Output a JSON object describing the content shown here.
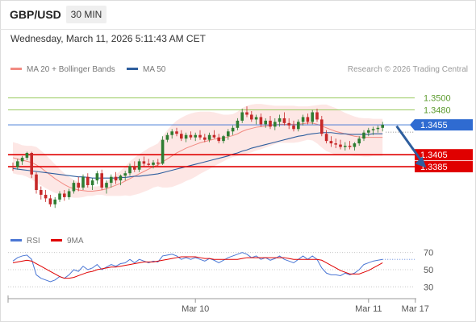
{
  "header": {
    "symbol": "GBP/USD",
    "timeframe": "30 MIN",
    "timestamp": "Wednesday, March 11, 2026 5:11:43 AM CET",
    "credit": "Research © 2026 Trading Central"
  },
  "colors": {
    "bollinger": "#f28b82",
    "ma50": "#2e5e9e",
    "candle_up": "#2e7d32",
    "candle_down": "#c62828",
    "support": "#e00000",
    "resistance": "#8bc34a",
    "current": "#2f6bd1",
    "rsi": "#4a76d4",
    "rsi_ma": "#e00000"
  },
  "chart_data": [
    {
      "type": "candlestick",
      "legend": [
        "MA 20 + Bollinger Bands",
        "MA 50"
      ],
      "ylim": [
        1.328,
        1.354
      ],
      "xlabels": [
        {
          "label": "Mar 10",
          "index": 39
        },
        {
          "label": "Mar 11",
          "index": 76
        },
        {
          "label": "Mar 17",
          "index": 86
        }
      ],
      "levels": {
        "resistance": [
          1.35,
          1.348
        ],
        "current": 1.3455,
        "support": [
          1.3405,
          1.3385
        ]
      },
      "forecast_arrow": {
        "from": [
          82,
          1.3453
        ],
        "to": [
          88,
          1.3386
        ]
      },
      "candles": [
        [
          1.3386,
          1.3392,
          1.3378,
          1.3384
        ],
        [
          1.3384,
          1.3398,
          1.338,
          1.3394
        ],
        [
          1.3394,
          1.3403,
          1.3388,
          1.34
        ],
        [
          1.34,
          1.341,
          1.3396,
          1.3408
        ],
        [
          1.3408,
          1.341,
          1.3366,
          1.3372
        ],
        [
          1.3372,
          1.3376,
          1.334,
          1.3346
        ],
        [
          1.3346,
          1.3352,
          1.333,
          1.3338
        ],
        [
          1.3338,
          1.3346,
          1.3326,
          1.3332
        ],
        [
          1.3332,
          1.3338,
          1.3318,
          1.3322
        ],
        [
          1.3322,
          1.3334,
          1.3316,
          1.333
        ],
        [
          1.333,
          1.3344,
          1.3326,
          1.334
        ],
        [
          1.334,
          1.3346,
          1.3328,
          1.3334
        ],
        [
          1.3334,
          1.3348,
          1.333,
          1.3344
        ],
        [
          1.3344,
          1.3362,
          1.334,
          1.3358
        ],
        [
          1.3358,
          1.3368,
          1.3344,
          1.335
        ],
        [
          1.335,
          1.3372,
          1.3346,
          1.3368
        ],
        [
          1.3368,
          1.3374,
          1.335,
          1.3354
        ],
        [
          1.3354,
          1.3366,
          1.3346,
          1.3362
        ],
        [
          1.3362,
          1.3378,
          1.3356,
          1.3374
        ],
        [
          1.3374,
          1.338,
          1.3346,
          1.335
        ],
        [
          1.335,
          1.3362,
          1.334,
          1.3358
        ],
        [
          1.3358,
          1.3372,
          1.335,
          1.3368
        ],
        [
          1.3368,
          1.3376,
          1.3356,
          1.3362
        ],
        [
          1.3362,
          1.3372,
          1.3354,
          1.337
        ],
        [
          1.337,
          1.3378,
          1.3362,
          1.3374
        ],
        [
          1.3374,
          1.339,
          1.337,
          1.3386
        ],
        [
          1.3386,
          1.3394,
          1.3376,
          1.338
        ],
        [
          1.338,
          1.3398,
          1.3376,
          1.3394
        ],
        [
          1.3394,
          1.3402,
          1.3386,
          1.339
        ],
        [
          1.339,
          1.3398,
          1.3384,
          1.3388
        ],
        [
          1.3388,
          1.3396,
          1.3382,
          1.3392
        ],
        [
          1.3392,
          1.3398,
          1.3386,
          1.339
        ],
        [
          1.339,
          1.3436,
          1.3388,
          1.343
        ],
        [
          1.343,
          1.3442,
          1.3426,
          1.3438
        ],
        [
          1.3438,
          1.3448,
          1.3432,
          1.3444
        ],
        [
          1.3444,
          1.345,
          1.3436,
          1.344
        ],
        [
          1.344,
          1.3446,
          1.3428,
          1.3432
        ],
        [
          1.3432,
          1.3442,
          1.3426,
          1.3438
        ],
        [
          1.3438,
          1.3444,
          1.343,
          1.3434
        ],
        [
          1.3434,
          1.3442,
          1.3428,
          1.3438
        ],
        [
          1.3438,
          1.3446,
          1.343,
          1.3434
        ],
        [
          1.3434,
          1.344,
          1.3426,
          1.343
        ],
        [
          1.343,
          1.3442,
          1.3426,
          1.3438
        ],
        [
          1.3438,
          1.3446,
          1.3432,
          1.3434
        ],
        [
          1.3434,
          1.344,
          1.3424,
          1.3428
        ],
        [
          1.3428,
          1.3438,
          1.3424,
          1.3436
        ],
        [
          1.3436,
          1.3448,
          1.343,
          1.3444
        ],
        [
          1.3444,
          1.3454,
          1.3438,
          1.345
        ],
        [
          1.345,
          1.3466,
          1.3446,
          1.3462
        ],
        [
          1.3462,
          1.3482,
          1.3458,
          1.3476
        ],
        [
          1.3476,
          1.3486,
          1.3468,
          1.3472
        ],
        [
          1.3472,
          1.3478,
          1.346,
          1.3464
        ],
        [
          1.3464,
          1.3472,
          1.3456,
          1.3468
        ],
        [
          1.3468,
          1.3474,
          1.3452,
          1.3456
        ],
        [
          1.3456,
          1.3466,
          1.345,
          1.3462
        ],
        [
          1.3462,
          1.347,
          1.3448,
          1.3452
        ],
        [
          1.3452,
          1.3466,
          1.3446,
          1.346
        ],
        [
          1.346,
          1.3472,
          1.3452,
          1.3466
        ],
        [
          1.3466,
          1.3476,
          1.3454,
          1.3458
        ],
        [
          1.3458,
          1.3466,
          1.3448,
          1.3454
        ],
        [
          1.3454,
          1.3462,
          1.3444,
          1.3448
        ],
        [
          1.3448,
          1.3464,
          1.3444,
          1.346
        ],
        [
          1.346,
          1.3472,
          1.3454,
          1.3468
        ],
        [
          1.3468,
          1.3474,
          1.3456,
          1.346
        ],
        [
          1.346,
          1.348,
          1.3456,
          1.3476
        ],
        [
          1.3476,
          1.3482,
          1.346,
          1.3464
        ],
        [
          1.3464,
          1.347,
          1.3436,
          1.344
        ],
        [
          1.344,
          1.3446,
          1.3424,
          1.3428
        ],
        [
          1.3428,
          1.3436,
          1.3418,
          1.3424
        ],
        [
          1.3424,
          1.3432,
          1.3416,
          1.3422
        ],
        [
          1.3422,
          1.343,
          1.3414,
          1.3418
        ],
        [
          1.3418,
          1.3426,
          1.3412,
          1.342
        ],
        [
          1.342,
          1.3428,
          1.3414,
          1.3418
        ],
        [
          1.3418,
          1.3426,
          1.3412,
          1.3424
        ],
        [
          1.3424,
          1.3436,
          1.342,
          1.3432
        ],
        [
          1.3432,
          1.3446,
          1.3428,
          1.3442
        ],
        [
          1.3442,
          1.345,
          1.3436,
          1.3446
        ],
        [
          1.3446,
          1.3452,
          1.3438,
          1.3448
        ],
        [
          1.3448,
          1.3454,
          1.3442,
          1.345
        ],
        [
          1.345,
          1.346,
          1.3444,
          1.3455
        ]
      ],
      "bb_upper": [
        1.3426,
        1.3424,
        1.3421,
        1.342,
        1.342,
        1.3418,
        1.3412,
        1.3405,
        1.3397,
        1.3389,
        1.3381,
        1.3374,
        1.3368,
        1.3363,
        1.3359,
        1.3356,
        1.3352,
        1.3352,
        1.3352,
        1.3354,
        1.336,
        1.3366,
        1.3372,
        1.3378,
        1.3385,
        1.3394,
        1.34,
        1.3406,
        1.3411,
        1.3416,
        1.342,
        1.3424,
        1.3436,
        1.3446,
        1.3455,
        1.3462,
        1.3467,
        1.3471,
        1.3474,
        1.3476,
        1.3477,
        1.3477,
        1.3477,
        1.3476,
        1.3474,
        1.3472,
        1.3472,
        1.3473,
        1.3477,
        1.3483,
        1.3487,
        1.3489,
        1.349,
        1.349,
        1.3489,
        1.3488,
        1.3487,
        1.3487,
        1.3487,
        1.3487,
        1.3487,
        1.3486,
        1.3486,
        1.3486,
        1.3487,
        1.3488,
        1.3489,
        1.3489,
        1.3486,
        1.3483,
        1.3479,
        1.3475,
        1.3472,
        1.3469,
        1.3467,
        1.3466,
        1.3466,
        1.3465,
        1.3465,
        1.3465
      ],
      "bb_mid": [
        1.34,
        1.3398,
        1.3396,
        1.3394,
        1.3392,
        1.3388,
        1.3383,
        1.3377,
        1.3371,
        1.3365,
        1.336,
        1.3355,
        1.3351,
        1.3348,
        1.3346,
        1.3345,
        1.3344,
        1.3344,
        1.3345,
        1.3346,
        1.3348,
        1.3351,
        1.3354,
        1.3357,
        1.3361,
        1.3365,
        1.3369,
        1.3373,
        1.3377,
        1.3381,
        1.3385,
        1.3388,
        1.3393,
        1.3398,
        1.3403,
        1.3408,
        1.3412,
        1.3416,
        1.3419,
        1.3422,
        1.3425,
        1.3427,
        1.3429,
        1.3431,
        1.3432,
        1.3433,
        1.3435,
        1.3437,
        1.344,
        1.3444,
        1.3447,
        1.3449,
        1.3451,
        1.3452,
        1.3453,
        1.3454,
        1.3455,
        1.3456,
        1.3456,
        1.3456,
        1.3456,
        1.3456,
        1.3457,
        1.3458,
        1.3458,
        1.3456,
        1.3453,
        1.345,
        1.3447,
        1.3444,
        1.3442,
        1.344,
        1.3438,
        1.3436,
        1.3435,
        1.3434,
        1.3434,
        1.3434,
        1.3434,
        1.3434
      ],
      "bb_lower": [
        1.3374,
        1.3372,
        1.3371,
        1.3368,
        1.3364,
        1.3358,
        1.3354,
        1.3349,
        1.3345,
        1.3341,
        1.3339,
        1.3336,
        1.3334,
        1.3333,
        1.3333,
        1.3334,
        1.3336,
        1.3336,
        1.3338,
        1.3338,
        1.3336,
        1.3336,
        1.3336,
        1.3336,
        1.3337,
        1.3336,
        1.3338,
        1.334,
        1.3343,
        1.3346,
        1.335,
        1.3352,
        1.335,
        1.335,
        1.3351,
        1.3354,
        1.3357,
        1.3361,
        1.3364,
        1.3368,
        1.3373,
        1.3377,
        1.3381,
        1.3386,
        1.339,
        1.3394,
        1.3398,
        1.3401,
        1.3403,
        1.3405,
        1.3407,
        1.3409,
        1.3412,
        1.3414,
        1.3417,
        1.342,
        1.3423,
        1.3425,
        1.3425,
        1.3425,
        1.3425,
        1.3426,
        1.3428,
        1.343,
        1.3429,
        1.3424,
        1.3417,
        1.3411,
        1.3408,
        1.3405,
        1.3405,
        1.3405,
        1.3404,
        1.3403,
        1.3403,
        1.3402,
        1.3402,
        1.3403,
        1.3403,
        1.3403
      ],
      "ma50": [
        1.3382,
        1.3381,
        1.338,
        1.3379,
        1.3378,
        1.3377,
        1.3376,
        1.3375,
        1.3374,
        1.3373,
        1.3372,
        1.3371,
        1.337,
        1.3369,
        1.3368,
        1.3368,
        1.3367,
        1.3366,
        1.3366,
        1.3366,
        1.3366,
        1.3366,
        1.3366,
        1.3367,
        1.3367,
        1.3368,
        1.3369,
        1.3369,
        1.337,
        1.3371,
        1.3372,
        1.3373,
        1.3375,
        1.3377,
        1.3379,
        1.3381,
        1.3383,
        1.3385,
        1.3387,
        1.3389,
        1.3391,
        1.3393,
        1.3395,
        1.3397,
        1.3399,
        1.3401,
        1.3403,
        1.3406,
        1.3408,
        1.3411,
        1.3413,
        1.3416,
        1.3418,
        1.342,
        1.3422,
        1.3424,
        1.3426,
        1.3428,
        1.343,
        1.3432,
        1.3434,
        1.3436,
        1.3437,
        1.3439,
        1.344,
        1.3441,
        1.3442,
        1.3442,
        1.3442,
        1.3441,
        1.344,
        1.344,
        1.3439,
        1.3439,
        1.3439,
        1.3439,
        1.3439,
        1.344,
        1.344,
        1.344
      ]
    },
    {
      "type": "line",
      "legend": [
        "RSI",
        "9MA"
      ],
      "ylim": [
        20,
        80
      ],
      "ticks": [
        70,
        50,
        30
      ],
      "series": [
        {
          "name": "RSI",
          "values": [
            60,
            64,
            66,
            67,
            62,
            44,
            40,
            38,
            36,
            38,
            42,
            40,
            44,
            50,
            48,
            54,
            50,
            52,
            56,
            50,
            53,
            56,
            54,
            57,
            58,
            62,
            58,
            62,
            60,
            58,
            60,
            59,
            66,
            67,
            68,
            66,
            62,
            64,
            62,
            64,
            62,
            60,
            63,
            61,
            58,
            61,
            64,
            66,
            68,
            70,
            68,
            64,
            66,
            62,
            64,
            61,
            63,
            66,
            62,
            60,
            58,
            62,
            66,
            62,
            66,
            62,
            52,
            46,
            44,
            44,
            43,
            46,
            44,
            46,
            50,
            56,
            58,
            60,
            61,
            62
          ]
        },
        {
          "name": "9MA",
          "values": [
            58,
            59,
            60,
            61,
            60,
            57,
            54,
            51,
            48,
            45,
            42,
            40,
            40,
            41,
            43,
            45,
            47,
            48,
            50,
            51,
            52,
            53,
            53,
            54,
            55,
            56,
            57,
            58,
            59,
            59,
            59,
            60,
            61,
            62,
            63,
            64,
            65,
            65,
            65,
            65,
            64,
            63,
            63,
            62,
            62,
            62,
            62,
            62,
            62,
            63,
            64,
            64,
            64,
            64,
            64,
            64,
            64,
            64,
            64,
            63,
            62,
            62,
            62,
            62,
            62,
            62,
            61,
            58,
            55,
            52,
            49,
            47,
            45,
            45,
            45,
            47,
            49,
            52,
            55,
            58
          ]
        }
      ]
    }
  ]
}
